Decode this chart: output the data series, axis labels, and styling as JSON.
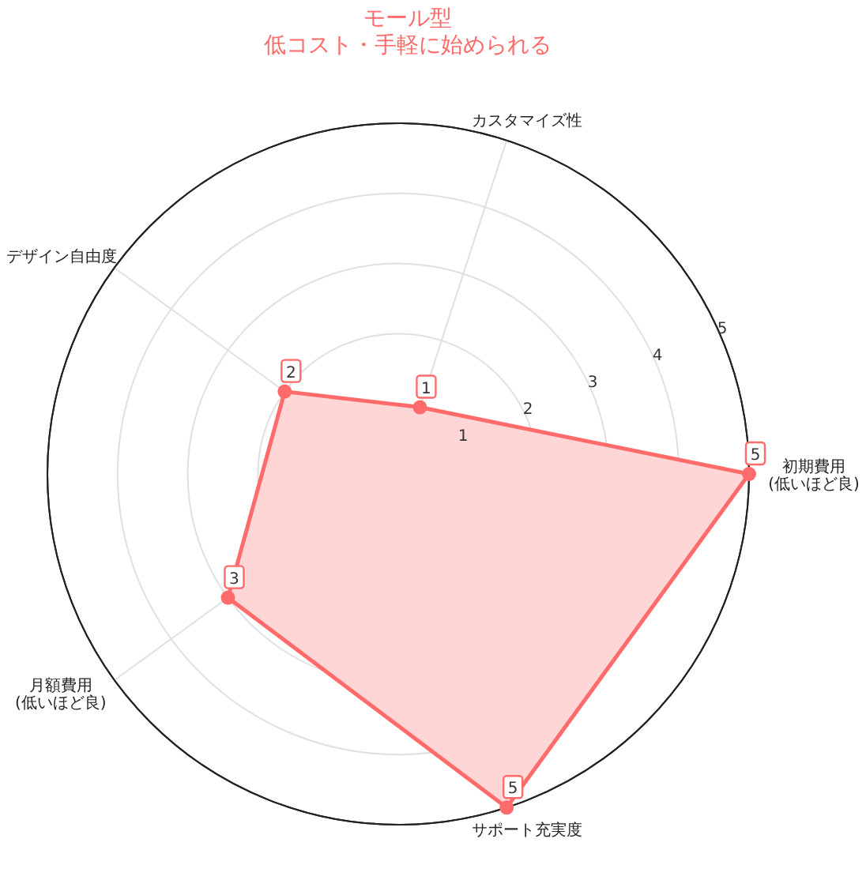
{
  "chart_data": {
    "type": "radar",
    "title": "モール型",
    "subtitle": "低コスト・手軽に始められる",
    "categories": [
      "カスタマイズ性",
      "初期費用\n(低いほど良)",
      "サポート充実度",
      "月額費用\n(低いほど良)",
      "デザイン自由度"
    ],
    "series": [
      {
        "color": "#ff6b6b",
        "values": [
          1,
          5,
          5,
          3,
          2
        ]
      }
    ],
    "ylim": [
      0,
      5
    ],
    "yticks": [
      1,
      2,
      3,
      4,
      5
    ],
    "grid": true,
    "marker": "circle",
    "data_labels": true
  }
}
